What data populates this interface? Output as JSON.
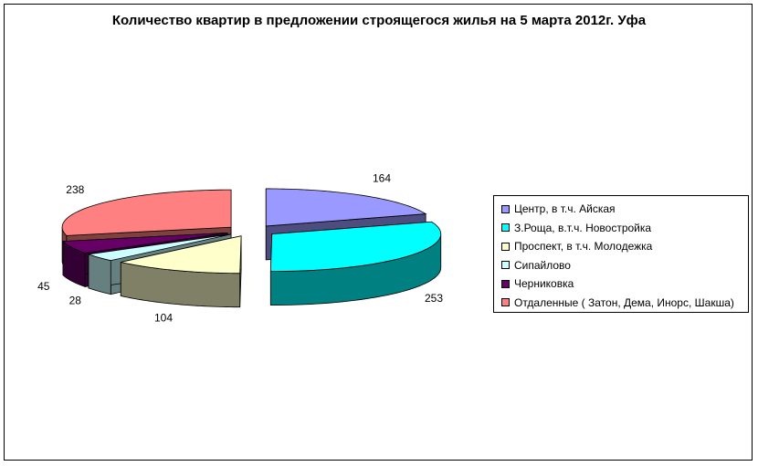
{
  "chart_data": {
    "type": "pie",
    "title": "Количество квартир в предложении строящегося жилья на 5 марта 2012г. Уфа",
    "legend_position": "right",
    "style": "3d-exploded",
    "series": [
      {
        "name": "Центр, в т.ч. Айская",
        "value": 164,
        "color": "#9999ff",
        "side_color": "#4d4d80"
      },
      {
        "name": "З.Роща, в.т.ч. Новостройка",
        "value": 253,
        "color": "#00ffff",
        "side_color": "#008080"
      },
      {
        "name": "Проспект, в т.ч. Молодежка",
        "value": 104,
        "color": "#ffffcc",
        "side_color": "#808066"
      },
      {
        "name": "Сипайлово",
        "value": 28,
        "color": "#ccffff",
        "side_color": "#668080"
      },
      {
        "name": "Черниковка",
        "value": 45,
        "color": "#660066",
        "side_color": "#330033"
      },
      {
        "name": "Отдаленные ( Затон, Дема, Инорс, Шакша)",
        "value": 238,
        "color": "#ff8080",
        "side_color": "#804040"
      }
    ]
  }
}
